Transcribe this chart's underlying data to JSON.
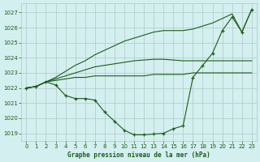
{
  "background_color": "#d4efef",
  "grid_color": "#b0c8c8",
  "line_color": "#1a5c1a",
  "marker_color": "#1a5c1a",
  "xlabel": "Graphe pression niveau de la mer (hPa)",
  "ylim": [
    1018.5,
    1027.6
  ],
  "xlim": [
    -0.5,
    23.5
  ],
  "yticks": [
    1019,
    1020,
    1021,
    1022,
    1023,
    1024,
    1025,
    1026,
    1027
  ],
  "xticks": [
    0,
    1,
    2,
    3,
    4,
    5,
    6,
    7,
    8,
    9,
    10,
    11,
    12,
    13,
    14,
    15,
    16,
    17,
    18,
    19,
    20,
    21,
    22,
    23
  ],
  "series": [
    {
      "x": [
        0,
        1,
        2,
        3,
        4,
        5,
        6,
        7,
        8,
        9,
        10,
        11,
        12,
        13,
        14,
        15,
        16,
        17,
        18,
        19,
        20,
        21,
        22,
        23
      ],
      "y": [
        1022.0,
        1022.1,
        1022.4,
        1022.2,
        1021.5,
        1021.3,
        1021.3,
        1021.2,
        1020.4,
        1019.8,
        1019.2,
        1018.9,
        1018.9,
        1018.95,
        1019.0,
        1019.3,
        1019.5,
        1022.7,
        1023.5,
        1024.3,
        1025.8,
        1026.7,
        1025.7,
        1027.2
      ],
      "marker": "+"
    },
    {
      "x": [
        0,
        1,
        2,
        3,
        4,
        5,
        6,
        7,
        8,
        9,
        10,
        11,
        12,
        13,
        14,
        15,
        16,
        17,
        18,
        19,
        20,
        21,
        22,
        23
      ],
      "y": [
        1022.0,
        1022.1,
        1022.4,
        1022.5,
        1022.6,
        1022.7,
        1022.7,
        1022.8,
        1022.8,
        1022.8,
        1022.8,
        1022.8,
        1022.8,
        1022.9,
        1022.9,
        1022.9,
        1022.9,
        1023.0,
        1023.0,
        1023.0,
        1023.0,
        1023.0,
        1023.0,
        1023.0
      ],
      "marker": null
    },
    {
      "x": [
        0,
        1,
        2,
        3,
        4,
        5,
        6,
        7,
        8,
        9,
        10,
        11,
        12,
        13,
        14,
        15,
        16,
        17,
        18,
        19,
        20,
        21,
        22,
        23
      ],
      "y": [
        1022.0,
        1022.1,
        1022.4,
        1022.6,
        1022.8,
        1023.0,
        1023.2,
        1023.4,
        1023.5,
        1023.6,
        1023.7,
        1023.8,
        1023.85,
        1023.9,
        1023.9,
        1023.85,
        1023.8,
        1023.8,
        1023.8,
        1023.8,
        1023.8,
        1023.8,
        1023.8,
        1023.8
      ],
      "marker": null
    },
    {
      "x": [
        0,
        1,
        2,
        3,
        4,
        5,
        6,
        7,
        8,
        9,
        10,
        11,
        12,
        13,
        14,
        15,
        16,
        17,
        18,
        19,
        20,
        21,
        22,
        23
      ],
      "y": [
        1022.0,
        1022.1,
        1022.4,
        1022.7,
        1023.1,
        1023.5,
        1023.8,
        1024.2,
        1024.5,
        1024.8,
        1025.1,
        1025.3,
        1025.5,
        1025.7,
        1025.8,
        1025.8,
        1025.8,
        1025.9,
        1026.1,
        1026.3,
        1026.6,
        1026.9,
        1025.7,
        1027.2
      ],
      "marker": null
    }
  ]
}
